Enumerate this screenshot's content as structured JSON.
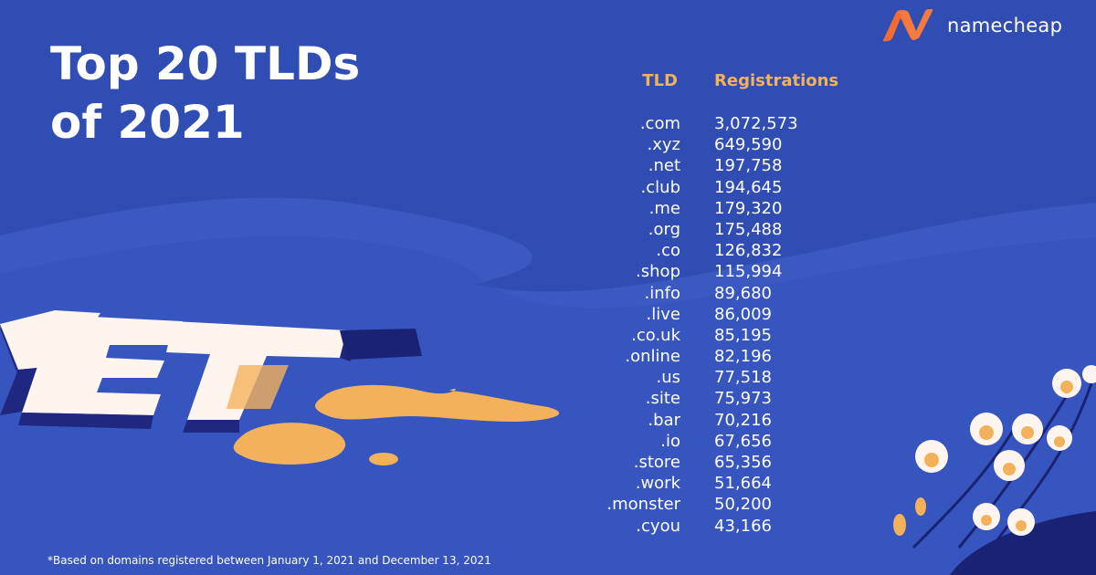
{
  "title": {
    "line1": "Top 20 TLDs",
    "line2": "of 2021"
  },
  "brand": {
    "name": "namecheap",
    "accent": "#f26c32"
  },
  "colors": {
    "background": "#2f4db3",
    "header_text": "#f4b15c",
    "blob": "#f4b15c"
  },
  "table": {
    "headers": {
      "tld": "TLD",
      "registrations": "Registrations"
    },
    "rows": [
      {
        "tld": ".com",
        "registrations": "3,072,573"
      },
      {
        "tld": ".xyz",
        "registrations": "649,590"
      },
      {
        "tld": ".net",
        "registrations": "197,758"
      },
      {
        "tld": ".club",
        "registrations": "194,645"
      },
      {
        "tld": ".me",
        "registrations": "179,320"
      },
      {
        "tld": ".org",
        "registrations": "175,488"
      },
      {
        "tld": ".co",
        "registrations": "126,832"
      },
      {
        "tld": ".shop",
        "registrations": "115,994"
      },
      {
        "tld": ".info",
        "registrations": "89,680"
      },
      {
        "tld": ".live",
        "registrations": "86,009"
      },
      {
        "tld": ".co.uk",
        "registrations": "85,195"
      },
      {
        "tld": ".online",
        "registrations": "82,196"
      },
      {
        "tld": ".us",
        "registrations": "77,518"
      },
      {
        "tld": ".site",
        "registrations": "75,973"
      },
      {
        "tld": ".bar",
        "registrations": "70,216"
      },
      {
        "tld": ".io",
        "registrations": "67,656"
      },
      {
        "tld": ".store",
        "registrations": "65,356"
      },
      {
        "tld": ".work",
        "registrations": "51,664"
      },
      {
        "tld": ".monster",
        "registrations": "50,200"
      },
      {
        "tld": ".cyou",
        "registrations": "43,166"
      }
    ]
  },
  "illustration": {
    "letters": "NET",
    "icon": "flowers-illustration"
  },
  "footnote": "*Based on domains registered between January 1, 2021 and December 13, 2021"
}
